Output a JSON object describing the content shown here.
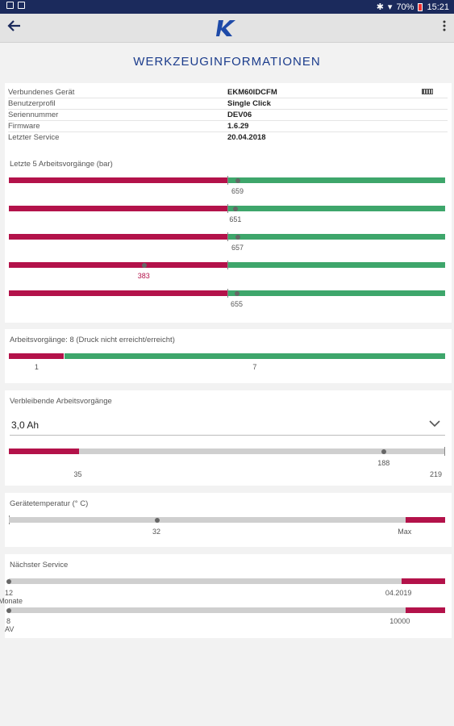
{
  "statusbar": {
    "battery": "70%",
    "time": "15:21"
  },
  "appbar": {
    "back_icon": "arrow-left-icon",
    "logo_letter": "K",
    "menu_icon": "more-vert-icon"
  },
  "page_title": "WERKZEUGINFORMATIONEN",
  "info": {
    "rows": [
      {
        "label": "Verbundenes Gerät",
        "value": "EKM60IDCFM"
      },
      {
        "label": "Benutzerprofil",
        "value": "Single Click"
      },
      {
        "label": "Seriennummer",
        "value": "DEV06"
      },
      {
        "label": "Firmware",
        "value": "1.6.29"
      },
      {
        "label": "Letzter Service",
        "value": "20.04.2018"
      }
    ]
  },
  "last_ops": {
    "title": "Letzte 5 Arbeitsvorgänge  (bar)",
    "threshold_fraction": 0.5,
    "items": [
      {
        "value": "659",
        "fraction": 0.525,
        "reached": true
      },
      {
        "value": "651",
        "fraction": 0.52,
        "reached": true
      },
      {
        "value": "657",
        "fraction": 0.525,
        "reached": true
      },
      {
        "value": "383",
        "fraction": 0.31,
        "reached": false
      },
      {
        "value": "655",
        "fraction": 0.523,
        "reached": true
      }
    ]
  },
  "ops_count": {
    "title": "Arbeitsvorgänge:  8  (Druck nicht erreicht/erreicht)",
    "not_reached": "1",
    "reached": "7",
    "not_reached_fraction": 0.125
  },
  "remaining": {
    "title": "Verbleibende Arbeitsvorgänge",
    "selected": "3,0 Ah",
    "min_label": "35",
    "current_label": "188",
    "max_label": "219",
    "min_fraction": 0.16,
    "current_fraction": 0.86
  },
  "temperature": {
    "title": "Gerätetemperatur  (° C)",
    "current_label": "32",
    "max_label": "Max",
    "current_fraction": 0.34,
    "max_fraction": 0.91
  },
  "service": {
    "title": "Nächster Service",
    "months": {
      "start_label": "12",
      "unit": "Monate",
      "end_label": "04.2019",
      "threshold_fraction": 0.9
    },
    "av": {
      "start_label": "8",
      "unit": "AV",
      "end_label": "10000",
      "threshold_fraction": 0.91
    }
  }
}
